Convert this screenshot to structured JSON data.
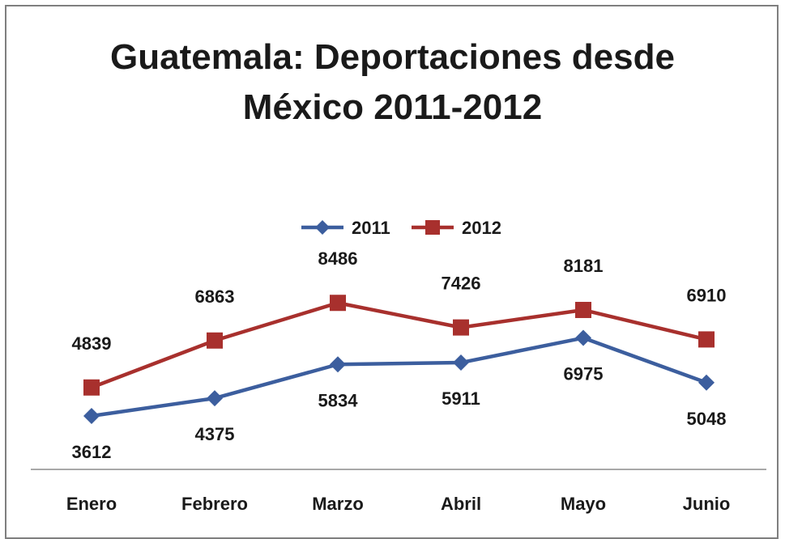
{
  "chart_data": {
    "type": "line",
    "title": [
      "Guatemala: Deportaciones desde",
      "México 2011-2012"
    ],
    "categories": [
      "Enero",
      "Febrero",
      "Marzo",
      "Abril",
      "Mayo",
      "Junio"
    ],
    "series": [
      {
        "name": "2011",
        "values": [
          3612,
          4375,
          5834,
          5911,
          6975,
          5048
        ],
        "color": "#3c5e9e",
        "marker": "diamond"
      },
      {
        "name": "2012",
        "values": [
          4839,
          6863,
          8486,
          7426,
          8181,
          6910
        ],
        "color": "#a8302d",
        "marker": "square"
      }
    ],
    "legend_position": "top",
    "grid": false,
    "data_labels": true
  }
}
